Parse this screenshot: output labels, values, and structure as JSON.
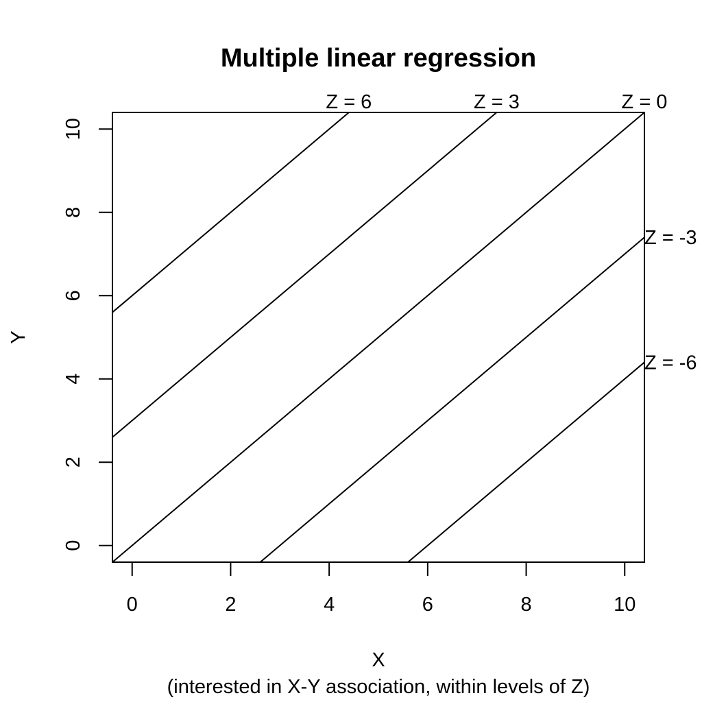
{
  "chart_data": {
    "type": "line",
    "title": "Multiple linear regression",
    "xlabel": "X",
    "xlabel_sub": "(interested in X-Y association, within levels of Z)",
    "ylabel": "Y",
    "xlim": [
      -0.4,
      10.4
    ],
    "ylim": [
      -0.4,
      10.4
    ],
    "xticks": [
      0,
      2,
      4,
      6,
      8,
      10
    ],
    "yticks": [
      0,
      2,
      4,
      6,
      8,
      10
    ],
    "grid": false,
    "legend": "none",
    "line_color": "#000000",
    "series": [
      {
        "name": "Z = 6",
        "z": 6,
        "x": [
          -0.4,
          4.4
        ],
        "y": [
          5.6,
          10.4
        ]
      },
      {
        "name": "Z = 3",
        "z": 3,
        "x": [
          -0.4,
          7.4
        ],
        "y": [
          2.6,
          10.4
        ]
      },
      {
        "name": "Z = 0",
        "z": 0,
        "x": [
          -0.4,
          10.4
        ],
        "y": [
          -0.4,
          10.4
        ]
      },
      {
        "name": "Z = -3",
        "z": -3,
        "x": [
          2.6,
          10.4
        ],
        "y": [
          -0.4,
          7.4
        ]
      },
      {
        "name": "Z = -6",
        "z": -6,
        "x": [
          5.6,
          10.4
        ],
        "y": [
          -0.4,
          4.4
        ]
      }
    ]
  }
}
